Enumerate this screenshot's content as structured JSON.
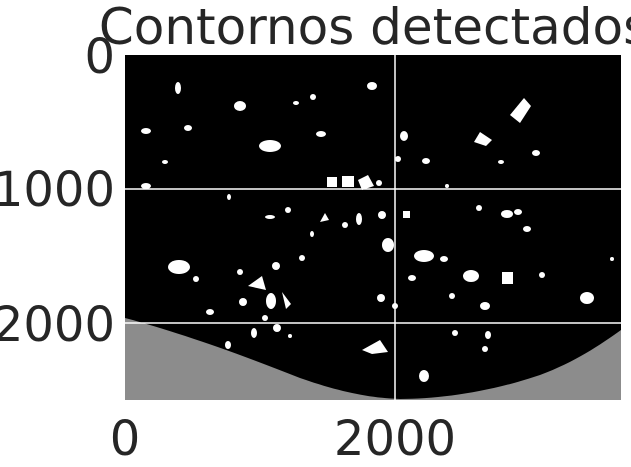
{
  "figure": {
    "title": "Contornos detectados",
    "x_ticks": [
      "0",
      "2000"
    ],
    "y_ticks": [
      "0",
      "1000",
      "2000"
    ],
    "background": "#000000",
    "foreground": "#ffffff",
    "grid": true
  },
  "image": {
    "width_units": 3700,
    "height_units": 2600,
    "x_tick_values": [
      0,
      2000
    ],
    "y_tick_values": [
      0,
      1000,
      2000
    ],
    "content": "binary image: white particle contours on black background with bright speckled floor at bottom"
  }
}
